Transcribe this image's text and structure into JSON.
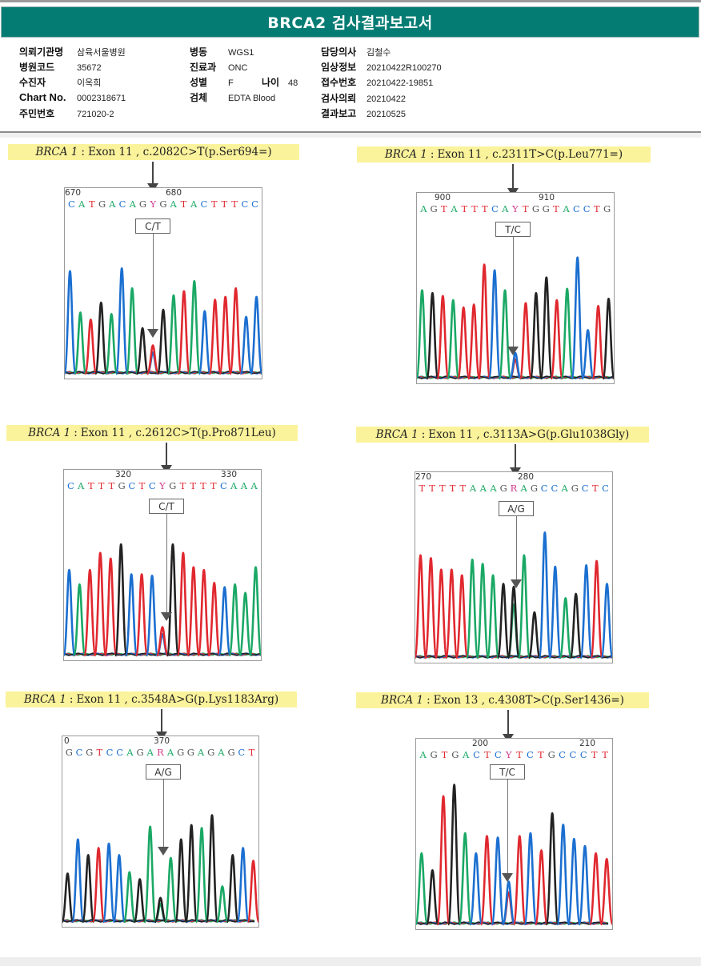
{
  "report": {
    "title": "BRCA2 검사결과보고서",
    "colors": {
      "header_bg": "#047c74",
      "caption_bg": "#fbf39b",
      "A": "#1aa865",
      "C": "#1b6fd0",
      "G": "#222222",
      "T": "#e0282f",
      "ambig": "#d23c8c"
    }
  },
  "patient_info": {
    "col1": [
      {
        "label": "의뢰기관명",
        "value": "삼육서울병원"
      },
      {
        "label": "병원코드",
        "value": "35672"
      },
      {
        "label": "수진자",
        "value": "이옥희"
      },
      {
        "label": "Chart No.",
        "value": "0002318671"
      },
      {
        "label": "주민번호",
        "value": "721020-2"
      }
    ],
    "col2": [
      {
        "label": "병동",
        "value": "WGS1"
      },
      {
        "label": "진료과",
        "value": "ONC"
      },
      {
        "label": "성별",
        "value": "F"
      },
      {
        "label": "검체",
        "value": "EDTA Blood"
      }
    ],
    "age": {
      "label": "나이",
      "value": "48"
    },
    "col3": [
      {
        "label": "담당의사",
        "value": "김철수"
      },
      {
        "label": "임상정보",
        "value": "20210422R100270"
      },
      {
        "label": "접수번호",
        "value": "20210422-19851"
      },
      {
        "label": "검사의뢰",
        "value": "20210422"
      },
      {
        "label": "결과보고",
        "value": "20210525"
      }
    ]
  },
  "variants": [
    {
      "gene": "BRCA 1",
      "colon": ":",
      "detail": "Exon 11 , c.2082C>T(p.Ser694=)",
      "positions": [
        "670",
        "680"
      ],
      "sequence": "CATGACAGYGATACTTTCC",
      "call": "C/T",
      "peaks": [
        "C",
        "A",
        "T",
        "G",
        "A",
        "C",
        "A",
        "G",
        "C/T",
        "G",
        "A",
        "T",
        "A",
        "C",
        "T",
        "T",
        "T",
        "C",
        "C"
      ]
    },
    {
      "gene": "BRCA 1",
      "colon": ":",
      "detail": "Exon 11 , c.2311T>C(p.Leu771=)",
      "positions": [
        "900",
        "910"
      ],
      "sequence": "AGTATTTCAYTGGTACCTG",
      "call": "T/C",
      "peaks": [
        "A",
        "G",
        "T",
        "A",
        "T",
        "T",
        "T",
        "C",
        "A",
        "T/C",
        "T",
        "G",
        "G",
        "T",
        "A",
        "C",
        "C",
        "T",
        "G"
      ]
    },
    {
      "gene": "BRCA 1",
      "colon": ":",
      "detail": "Exon 11 , c.2612C>T(p.Pro871Leu)",
      "positions": [
        "320",
        "330"
      ],
      "sequence": "CATTTGCTCYGTTTTCAAA",
      "call": "C/T",
      "peaks": [
        "C",
        "A",
        "T",
        "T",
        "T",
        "G",
        "C",
        "T",
        "C",
        "C/T",
        "G",
        "T",
        "T",
        "T",
        "T",
        "C",
        "A",
        "A",
        "A"
      ]
    },
    {
      "gene": "BRCA 1",
      "colon": ":",
      "detail": "Exon 11 , c.3113A>G(p.Glu1038Gly)",
      "positions": [
        "270",
        "280"
      ],
      "sequence": "TTTTTAAAGRAGCCAGCTC",
      "call": "A/G",
      "peaks": [
        "T",
        "T",
        "T",
        "T",
        "T",
        "A",
        "A",
        "A",
        "G",
        "A/G",
        "A",
        "G",
        "C",
        "C",
        "A",
        "G",
        "C",
        "T",
        "C"
      ]
    },
    {
      "gene": "BRCA 1",
      "colon": ":",
      "detail": "Exon 11 , c.3548A>G(p.Lys1183Arg)",
      "positions": [
        "0",
        "370"
      ],
      "sequence": "GCGTCCAGARAGGAGAGCT",
      "call": "A/G",
      "peaks": [
        "G",
        "C",
        "G",
        "T",
        "C",
        "C",
        "A",
        "G",
        "A",
        "A/G",
        "A",
        "G",
        "G",
        "A",
        "G",
        "A",
        "G",
        "C",
        "T"
      ]
    },
    {
      "gene": "BRCA 1",
      "colon": ":",
      "detail": "Exon 13 , c.4308T>C(p.Ser1436=)",
      "positions": [
        "200",
        "210"
      ],
      "sequence": "AGTGACTCYTCTGCCCTT",
      "call": "T/C",
      "peaks": [
        "A",
        "G",
        "T",
        "G",
        "A",
        "C",
        "T",
        "C",
        "T/C",
        "T",
        "C",
        "T",
        "G",
        "C",
        "C",
        "C",
        "T",
        "T"
      ]
    }
  ]
}
